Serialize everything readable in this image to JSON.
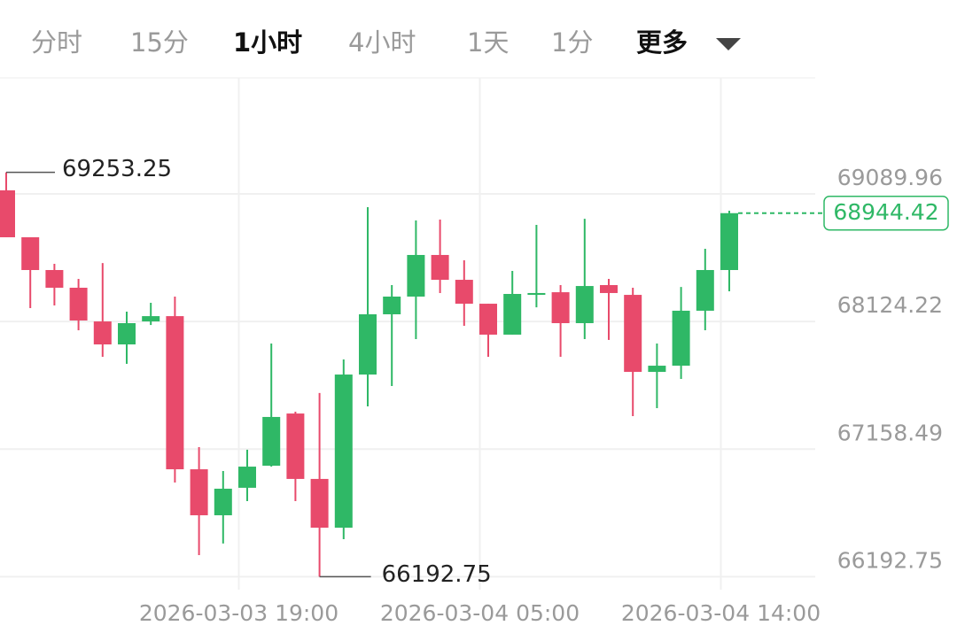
{
  "tabs": {
    "items": [
      "分时",
      "15分",
      "1小时",
      "4小时",
      "1天",
      "1分",
      "更多"
    ],
    "active": 2
  },
  "chart_data": {
    "type": "candlestick",
    "categories": [
      null,
      null,
      null,
      null,
      null,
      null,
      null,
      null,
      null,
      null,
      "2026-03-03 19:00",
      null,
      null,
      null,
      null,
      null,
      null,
      null,
      null,
      null,
      "2026-03-04 05:00",
      null,
      null,
      null,
      null,
      null,
      null,
      null,
      null,
      null,
      "2026-03-04 14:00"
    ],
    "open": [
      69117,
      68762,
      68514,
      68380,
      68125,
      67951,
      68125,
      68165,
      67006,
      66658,
      66866,
      67033,
      67428,
      66933,
      66564,
      67723,
      68179,
      68313,
      68628,
      68440,
      68259,
      68025,
      68326,
      68346,
      68112,
      68400,
      68326,
      67743,
      67790,
      68206,
      68514
    ],
    "high": [
      69253.25,
      68762,
      68561,
      68447,
      68567,
      68199,
      68266,
      68313,
      67174,
      66993,
      67154,
      67958,
      67442,
      67583,
      67837,
      68990,
      68400,
      68889,
      68896,
      68588,
      68259,
      68507,
      68856,
      68400,
      68902,
      68447,
      68380,
      67958,
      68386,
      68675,
      68963
    ],
    "low": [
      68762,
      68226,
      68246,
      68058,
      67857,
      67804,
      68098,
      66906,
      66356,
      66444,
      66765,
      67026,
      66765,
      66192.75,
      66477,
      67482,
      67636,
      67991,
      68340,
      68092,
      67857,
      68025,
      68232,
      67857,
      67991,
      67985,
      67408,
      67469,
      67690,
      68058,
      68353
    ],
    "close": [
      68762,
      68514,
      68380,
      68132,
      67951,
      68112,
      68165,
      67006,
      66658,
      66859,
      67026,
      67402,
      66933,
      66564,
      67723,
      68179,
      68313,
      68628,
      68440,
      68259,
      68025,
      68333,
      68340,
      68112,
      68393,
      68340,
      67743,
      67790,
      68206,
      68514,
      68944.42
    ],
    "colors": {
      "up": "#2fb866",
      "down": "#e84a6b"
    },
    "ylim": [
      66095,
      69968
    ],
    "yticks": [
      69089.96,
      68124.22,
      67158.49,
      66192.75
    ],
    "grid": true
  }
}
